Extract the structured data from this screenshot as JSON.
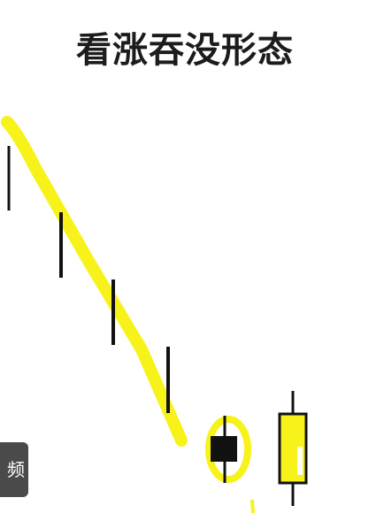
{
  "title": "看涨吞没形态",
  "overlay_chip": {
    "label": "频"
  },
  "colors": {
    "highlight": "#f7f21a",
    "ink": "#111111",
    "chip_bg": "#4a4a4a"
  }
}
